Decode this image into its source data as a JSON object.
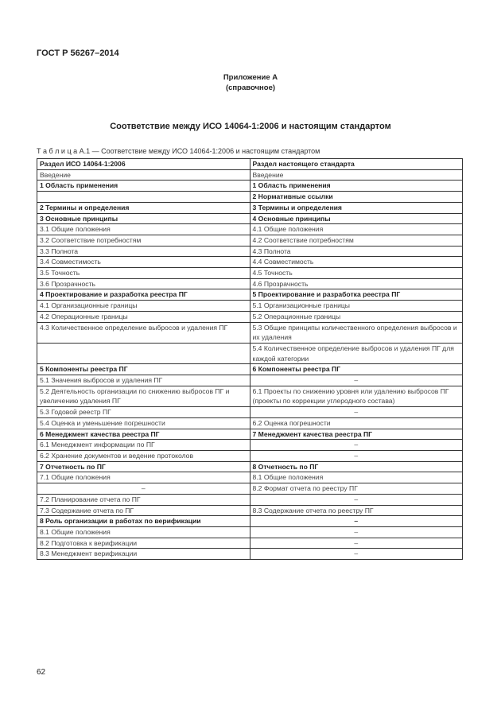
{
  "header": {
    "doc_id": "ГОСТ Р 56267–2014"
  },
  "annex": {
    "label": "Приложение А",
    "type": "(справочное)"
  },
  "title": "Соответствие между ИСО 14064-1:2006 и настоящим стандартом",
  "caption": "Т а б л и ц а  А.1 — Соответствие между ИСО 14064-1:2006 и настоящим стандартом",
  "table": {
    "headers": [
      "Раздел ИСО 14064-1:2006",
      "Раздел настоящего стандарта"
    ],
    "rows": [
      {
        "left": "Введение",
        "right": "Введение",
        "bold": false
      },
      {
        "left": "1 Область применения",
        "right": "1 Область применения",
        "bold": true
      },
      {
        "left": "",
        "right": "2 Нормативные ссылки",
        "bold": true
      },
      {
        "left": "2 Термины и определения",
        "right": "3 Термины и определения",
        "bold": true
      },
      {
        "left": "3 Основные принципы",
        "right": "4 Основные принципы",
        "bold": true
      },
      {
        "left": "3.1 Общие положения",
        "right": "4.1 Общие положения",
        "bold": false
      },
      {
        "left": "3.2 Соответствие потребностям",
        "right": "4.2 Соответствие потребностям",
        "bold": false
      },
      {
        "left": "3.3 Полнота",
        "right": "4.3 Полнота",
        "bold": false
      },
      {
        "left": "3.4 Совместимость",
        "right": "4.4 Совместимость",
        "bold": false
      },
      {
        "left": "3.5 Точность",
        "right": "4.5 Точность",
        "bold": false
      },
      {
        "left": "3.6 Прозрачность",
        "right": "4.6 Прозрачность",
        "bold": false
      },
      {
        "left": "4 Проектирование и разработка реестра ПГ",
        "right": "5 Проектирование и разработка реестра ПГ",
        "bold": true
      },
      {
        "left": "4.1 Организационные границы",
        "right": "5.1 Организационные границы",
        "bold": false
      },
      {
        "left": "4.2 Операционные границы",
        "right": "5.2 Операционные границы",
        "bold": false
      },
      {
        "left": "4.3 Количественное определение выбросов и удаления ПГ",
        "right": "5.3 Общие принципы количественного определения выбросов и их удаления",
        "bold": false
      },
      {
        "left": "",
        "right": "5.4 Количественное определение выбросов и удаления ПГ для каждой категории",
        "bold": false
      },
      {
        "left": "5 Компоненты реестра ПГ",
        "right": "6 Компоненты реестра ПГ",
        "bold": true
      },
      {
        "left": "5.1 Значения выбросов и удаления ПГ",
        "right": "–",
        "bold": false
      },
      {
        "left": "5.2 Деятельность организации по снижению выбросов ПГ и увеличению удаления ПГ",
        "right": "6.1 Проекты по снижению уровня или удалению выбросов ПГ (проекты по коррекции углеродного состава)",
        "bold": false
      },
      {
        "left": "5.3 Годовой реестр ПГ",
        "right": "–",
        "bold": false
      },
      {
        "left": "5.4 Оценка и уменьшение погрешности",
        "right": "6.2 Оценка погрешности",
        "bold": false
      },
      {
        "left": "6 Менеджмент качества реестра ПГ",
        "right": "7 Менеджмент качества реестра ПГ",
        "bold": true
      },
      {
        "left": "6.1 Менеджмент информации по ПГ",
        "right": "–",
        "bold": false
      },
      {
        "left": "6.2 Хранение документов и ведение протоколов",
        "right": "–",
        "bold": false
      },
      {
        "left": "7 Отчетность по ПГ",
        "right": "8 Отчетность по ПГ",
        "bold": true
      },
      {
        "left": "7.1 Общие положения",
        "right": "8.1 Общие положения",
        "bold": false
      },
      {
        "left": "–",
        "right": "8.2 Формат отчета по реестру ПГ",
        "bold": false
      },
      {
        "left": "7.2 Планирование отчета по ПГ",
        "right": "–",
        "bold": false
      },
      {
        "left": "7.3 Содержание отчета по ПГ",
        "right": "8.3 Содержание отчета по реестру ПГ",
        "bold": false
      },
      {
        "left": "8 Роль организации в работах по верификации",
        "right": "–",
        "bold": true
      },
      {
        "left": "8.1 Общие положения",
        "right": "–",
        "bold": false
      },
      {
        "left": "8.2 Подготовка к верификации",
        "right": "–",
        "bold": false
      },
      {
        "left": "8.3 Менеджмент верификации",
        "right": "–",
        "bold": false
      }
    ]
  },
  "page_number": "62"
}
